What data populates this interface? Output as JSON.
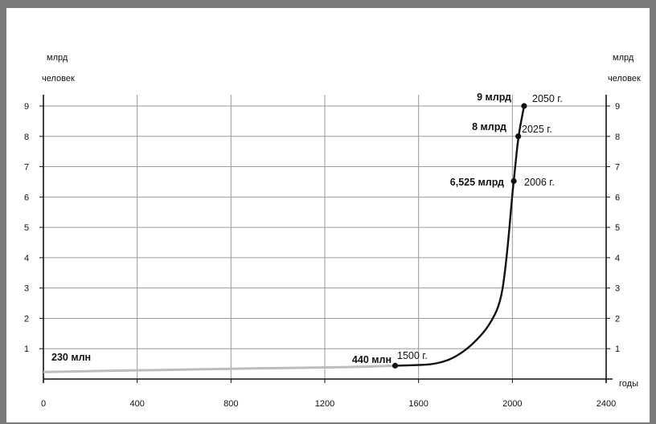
{
  "chart_data": {
    "type": "line",
    "title": "",
    "ylabel_left": [
      "млрд",
      "человек"
    ],
    "ylabel_right": [
      "млрд",
      "человек"
    ],
    "xlabel": "годы",
    "xlim": [
      0,
      2400
    ],
    "ylim": [
      0,
      9.5
    ],
    "x_ticks": [
      "0",
      "400",
      "800",
      "1200",
      "1600",
      "2000",
      "2400"
    ],
    "y_ticks": [
      "1",
      "2",
      "3",
      "4",
      "5",
      "6",
      "7",
      "8",
      "9"
    ],
    "grid": true,
    "series": [
      {
        "name": "",
        "line_color_ancient": "#bdbdbd",
        "line_color_modern": "#111111",
        "x": [
          0,
          200,
          400,
          600,
          800,
          1000,
          1200,
          1400,
          1500,
          1600,
          1650,
          1700,
          1750,
          1800,
          1850,
          1900,
          1950,
          1975,
          2000,
          2006,
          2025,
          2050
        ],
        "y": [
          0.23,
          0.26,
          0.29,
          0.31,
          0.34,
          0.36,
          0.38,
          0.41,
          0.44,
          0.46,
          0.48,
          0.55,
          0.7,
          0.95,
          1.3,
          1.75,
          2.5,
          3.9,
          6.1,
          6.525,
          8.0,
          9.0
        ]
      }
    ],
    "annotations": [
      {
        "x": 0,
        "y": 0.23,
        "text": "230 млн",
        "year": "",
        "marker": false
      },
      {
        "x": 1500,
        "y": 0.44,
        "text": "440 млн",
        "year": "1500 г.",
        "marker": true
      },
      {
        "x": 2006,
        "y": 6.525,
        "text": "6,525 млрд",
        "year": "2006 г.",
        "marker": true
      },
      {
        "x": 2025,
        "y": 8.0,
        "text": "8 млрд",
        "year": "2025 г.",
        "marker": true
      },
      {
        "x": 2050,
        "y": 9.0,
        "text": "9 млрд",
        "year": "2050 г.",
        "marker": true
      }
    ]
  }
}
